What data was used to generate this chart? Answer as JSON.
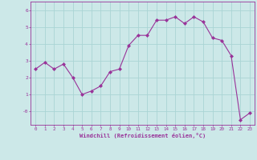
{
  "x": [
    0,
    1,
    2,
    3,
    4,
    5,
    6,
    7,
    8,
    9,
    10,
    11,
    12,
    13,
    14,
    15,
    16,
    17,
    18,
    19,
    20,
    21,
    22,
    23
  ],
  "y": [
    2.5,
    2.9,
    2.5,
    2.8,
    2.0,
    1.0,
    1.2,
    1.5,
    2.35,
    2.5,
    3.9,
    4.5,
    4.5,
    5.4,
    5.4,
    5.6,
    5.2,
    5.6,
    5.3,
    4.35,
    4.2,
    3.3,
    -0.5,
    -0.1
  ],
  "line_color": "#993399",
  "marker_color": "#993399",
  "bg_color": "#cce8e8",
  "grid_color": "#aad4d4",
  "xlabel": "Windchill (Refroidissement éolien,°C)",
  "xlabel_color": "#993399",
  "tick_color": "#993399",
  "ylim": [
    -0.8,
    6.5
  ],
  "xlim": [
    -0.5,
    23.5
  ],
  "yticks": [
    0,
    1,
    2,
    3,
    4,
    5,
    6
  ],
  "ytick_labels": [
    "-0",
    "1",
    "2",
    "3",
    "4",
    "5",
    "6"
  ],
  "xticks": [
    0,
    1,
    2,
    3,
    4,
    5,
    6,
    7,
    8,
    9,
    10,
    11,
    12,
    13,
    14,
    15,
    16,
    17,
    18,
    19,
    20,
    21,
    22,
    23
  ],
  "figsize": [
    3.2,
    2.0
  ],
  "dpi": 100
}
